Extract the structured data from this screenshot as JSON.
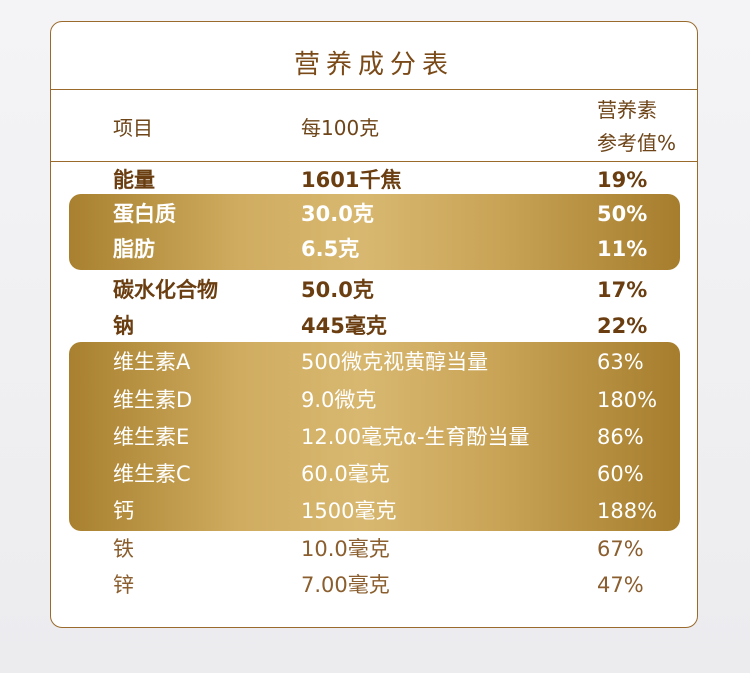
{
  "table": {
    "title": "营养成分表",
    "headers": {
      "item": "项目",
      "per100g": "每100克",
      "nrv_line1": "营养素",
      "nrv_line2": "参考值%"
    },
    "rows": [
      {
        "name": "能量",
        "value": "1601千焦",
        "nrv": "19%"
      },
      {
        "name": "蛋白质",
        "value": "30.0克",
        "nrv": "50%"
      },
      {
        "name": "脂肪",
        "value": "6.5克",
        "nrv": "11%"
      },
      {
        "name": "碳水化合物",
        "value": "50.0克",
        "nrv": "17%"
      },
      {
        "name": "钠",
        "value": "445毫克",
        "nrv": "22%"
      },
      {
        "name": "维生素A",
        "value": "500微克视黄醇当量",
        "nrv": "63%"
      },
      {
        "name": "维生素D",
        "value": "9.0微克",
        "nrv": "180%"
      },
      {
        "name": "维生素E",
        "value": "12.00毫克α-生育酚当量",
        "nrv": "86%"
      },
      {
        "name": "维生素C",
        "value": "60.0毫克",
        "nrv": "60%"
      },
      {
        "name": "钙",
        "value": "1500毫克",
        "nrv": "188%"
      },
      {
        "name": "铁",
        "value": "10.0毫克",
        "nrv": "67%"
      },
      {
        "name": "锌",
        "value": "7.00毫克",
        "nrv": "47%"
      }
    ]
  }
}
